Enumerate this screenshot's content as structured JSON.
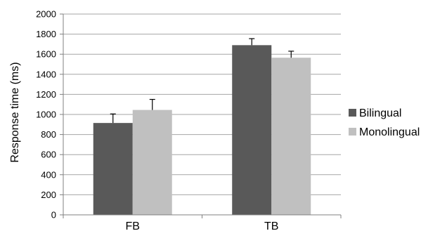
{
  "chart_data": {
    "type": "bar",
    "title": "",
    "xlabel": "",
    "ylabel": "Response time (ms)",
    "ylim": [
      0,
      2000
    ],
    "y_ticks": [
      0,
      200,
      400,
      600,
      800,
      1000,
      1200,
      1400,
      1600,
      1800,
      2000
    ],
    "categories": [
      "FB",
      "TB"
    ],
    "grid": "horizontal",
    "legend_position": "right",
    "series": [
      {
        "name": "Bilingual",
        "color": "#595959",
        "values": [
          915,
          1690
        ],
        "error": [
          90,
          65
        ]
      },
      {
        "name": "Monolingual",
        "color": "#c0c0c0",
        "values": [
          1045,
          1565
        ],
        "error": [
          105,
          65
        ]
      }
    ]
  }
}
